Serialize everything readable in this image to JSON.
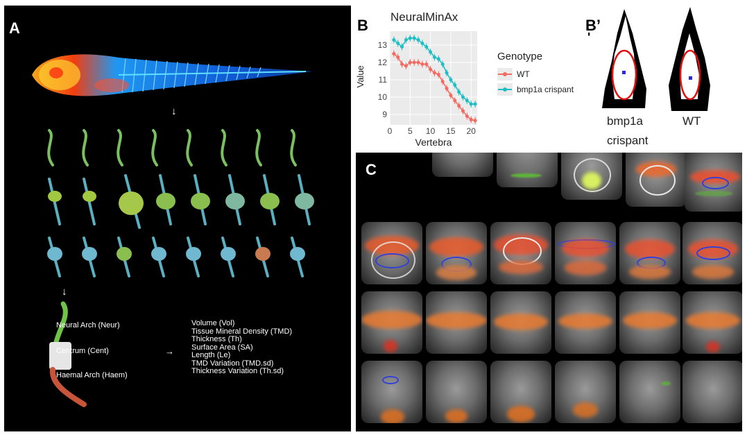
{
  "panels": {
    "a": "A",
    "b": "B",
    "bprime": "B’",
    "bprime_mark": "'",
    "c": "C"
  },
  "panel_a": {
    "parts": {
      "neural": "Neural Arch (Neur)",
      "centrum": "Centrum (Cent)",
      "haemal": "Haemal Arch (Haem)"
    },
    "metrics": [
      "Volume (Vol)",
      "Tissue Mineral Density (TMD)",
      "Thickness (Th)",
      "Surface Area (SA)",
      "Length (Le)",
      "TMD Variation (TMD.sd)",
      "Thickness Variation (Th.sd)"
    ],
    "colors": {
      "neural": "#6fc24a",
      "centrum": "#e6e6e6",
      "haemal": "#c8553a"
    }
  },
  "panel_bprime": {
    "labels": {
      "crispant_line1": "bmp1a",
      "crispant_line2": "crispant",
      "wt": "WT"
    }
  },
  "chart_data": {
    "type": "line",
    "title": "NeuralMinAx",
    "xlabel": "Vertebra",
    "ylabel": "Value",
    "xlim": [
      0,
      21.5
    ],
    "ylim": [
      8.4,
      13.8
    ],
    "xticks": [
      0,
      5,
      10,
      15,
      20
    ],
    "yticks": [
      9,
      10,
      11,
      12,
      13
    ],
    "grid": true,
    "legend_title": "Genotype",
    "legend_position": "right",
    "series": [
      {
        "name": "WT",
        "color": "#f26a62",
        "x": [
          1,
          2,
          3,
          4,
          5,
          6,
          7,
          8,
          9,
          10,
          11,
          12,
          13,
          14,
          15,
          16,
          17,
          18,
          19,
          20,
          21
        ],
        "values": [
          12.5,
          12.3,
          11.9,
          11.8,
          12.0,
          12.0,
          12.0,
          11.9,
          11.9,
          11.6,
          11.4,
          11.3,
          10.9,
          10.5,
          10.1,
          9.8,
          9.5,
          9.2,
          8.9,
          8.7,
          8.65
        ]
      },
      {
        "name": "bmp1a crispant",
        "color": "#1dbfc4",
        "x": [
          1,
          2,
          3,
          4,
          5,
          6,
          7,
          8,
          9,
          10,
          11,
          12,
          13,
          14,
          15,
          16,
          17,
          18,
          19,
          20,
          21
        ],
        "values": [
          13.3,
          13.1,
          12.9,
          13.3,
          13.4,
          13.4,
          13.3,
          13.1,
          12.9,
          12.6,
          12.3,
          12.2,
          11.9,
          11.4,
          11.0,
          10.7,
          10.3,
          10.0,
          9.8,
          9.6,
          9.6
        ]
      }
    ]
  }
}
